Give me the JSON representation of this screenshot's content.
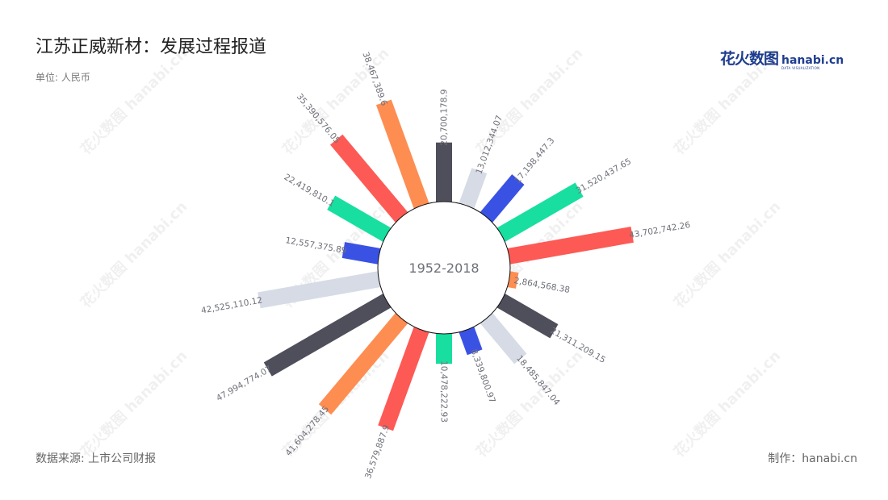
{
  "header": {
    "title": "江苏正威新材：发展过程报道",
    "unit": "单位: 人民币"
  },
  "logo": {
    "cn": "花火数图",
    "en": "hanabi.cn",
    "sub": "DATA VISUALIZATION"
  },
  "footer": {
    "source": "数据来源: 上市公司财报",
    "maker": "制作：hanabi.cn"
  },
  "chart_data": {
    "type": "bar",
    "layout": "polar-radial",
    "center_label": "1952-2018",
    "values": [
      20700178.9,
      13012344.07,
      17198447.3,
      31520437.65,
      43702742.26,
      2864568.38,
      21311209.15,
      18485847.04,
      8339800.97,
      10478222.93,
      36579887.9,
      41604278.45,
      47994774.07,
      42525110.12,
      12557375.89,
      22419810.1,
      35390576.05,
      38467389.6
    ],
    "labels": [
      "20,700,178.9",
      "13,012,344.07",
      "17,198,447.3",
      "31,520,437.65",
      "43,702,742.26",
      "2,864,568.38",
      "21,311,209.15",
      "18,485,847.04",
      "8,339,800.97",
      "10,478,222.93",
      "36,579,887.9",
      "41,604,278.45",
      "47,994,774.07",
      "42,525,110.12",
      "12,557,375.89",
      "22,419,810.1",
      "35,390,576.05",
      "38,467,389.6"
    ],
    "colors": [
      "#4e4f5b",
      "#d6dbe6",
      "#3a52e4",
      "#18df9f",
      "#fd5a55",
      "#fe8d52"
    ],
    "legend": "none"
  },
  "watermark": {
    "text": "花火数图 hanabi.cn"
  }
}
